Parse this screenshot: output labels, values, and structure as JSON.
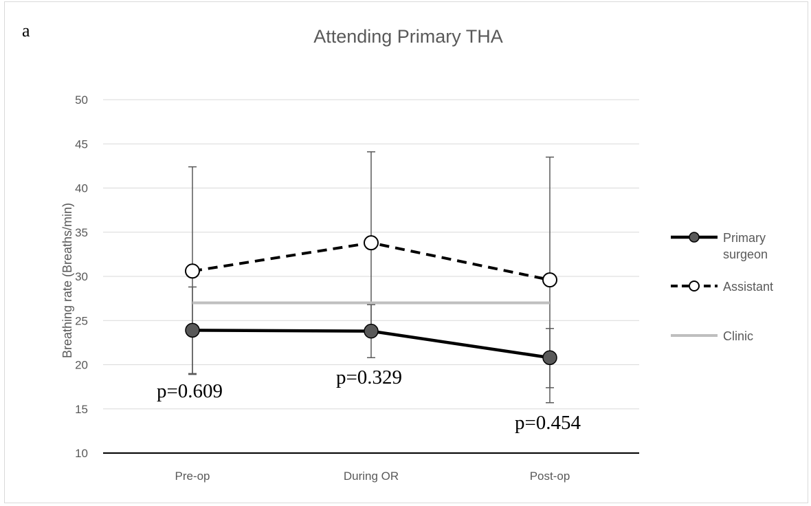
{
  "panel_label": "a",
  "chart_data": {
    "type": "line",
    "title": "Attending Primary THA",
    "ylabel": "Breathing rate (Breaths/min)",
    "xlabel": "",
    "categories": [
      "Pre-op",
      "During OR",
      "Post-op"
    ],
    "ylim": [
      10,
      50
    ],
    "yticks": [
      10,
      15,
      20,
      25,
      30,
      35,
      40,
      45,
      50
    ],
    "grid": true,
    "legend_position": "right",
    "series": [
      {
        "name": "Primary surgeon",
        "style": "solid",
        "marker": "filled-circle",
        "color": "#000000",
        "marker_fill": "#595959",
        "values": [
          23.9,
          23.8,
          20.8
        ],
        "error_low": [
          19.0,
          20.8,
          17.4
        ],
        "error_high": [
          28.8,
          26.8,
          24.1
        ]
      },
      {
        "name": "Assistant",
        "style": "dashed",
        "marker": "open-circle",
        "color": "#000000",
        "marker_fill": "#ffffff",
        "values": [
          30.6,
          33.8,
          29.6
        ],
        "error_low": [
          18.9,
          23.5,
          15.7
        ],
        "error_high": [
          42.4,
          44.1,
          43.5
        ]
      },
      {
        "name": "Clinic",
        "style": "solid",
        "marker": "none",
        "color": "#bfbfbf",
        "values": [
          27.0,
          27.0,
          27.0
        ]
      }
    ],
    "annotations": [
      "p=0.609",
      "p=0.329",
      "p=0.454"
    ]
  }
}
